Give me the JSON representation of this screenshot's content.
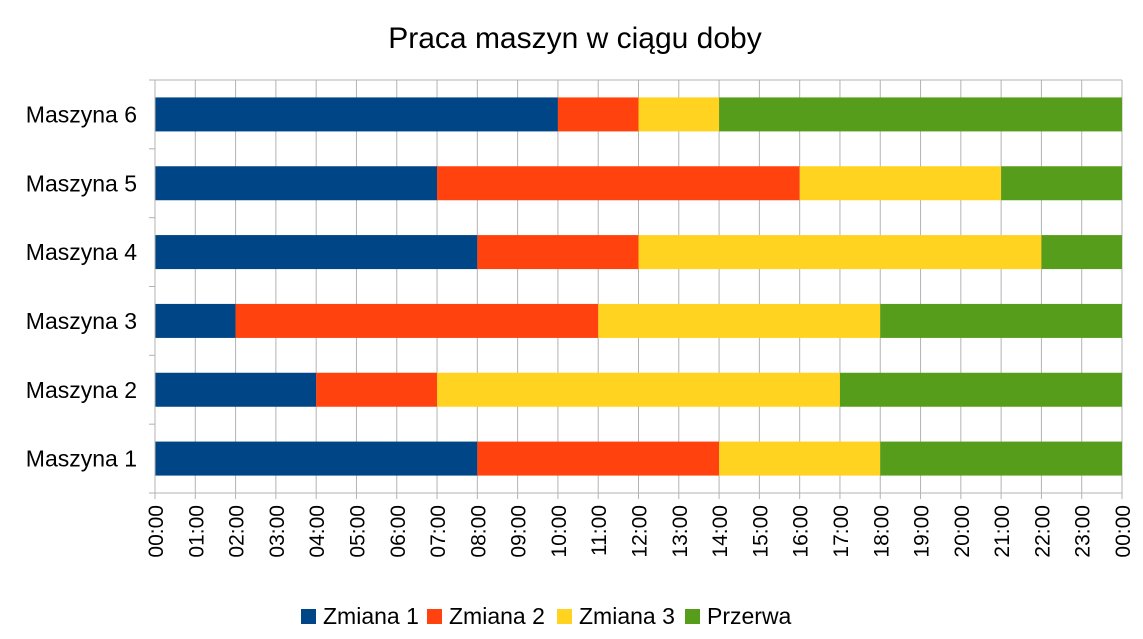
{
  "chart_data": {
    "type": "bar",
    "orientation": "horizontal",
    "stacked": true,
    "title": "Praca maszyn w ciągu doby",
    "categories": [
      "Maszyna 1",
      "Maszyna 2",
      "Maszyna 3",
      "Maszyna 4",
      "Maszyna 5",
      "Maszyna 6"
    ],
    "series": [
      {
        "name": "Zmiana 1",
        "color": "#004586",
        "values": [
          8,
          4,
          2,
          8,
          7,
          10
        ]
      },
      {
        "name": "Zmiana 2",
        "color": "#ff420e",
        "values": [
          6,
          3,
          9,
          4,
          9,
          2
        ]
      },
      {
        "name": "Zmiana 3",
        "color": "#ffd320",
        "values": [
          4,
          10,
          7,
          10,
          5,
          2
        ]
      },
      {
        "name": "Przerwa",
        "color": "#579d1c",
        "values": [
          6,
          7,
          6,
          2,
          3,
          10
        ]
      }
    ],
    "xlim": [
      0,
      24
    ],
    "x_unit": "hours",
    "x_tick_labels": [
      "00:00",
      "01:00",
      "02:00",
      "03:00",
      "04:00",
      "05:00",
      "06:00",
      "07:00",
      "08:00",
      "09:00",
      "10:00",
      "11:00",
      "12:00",
      "13:00",
      "14:00",
      "15:00",
      "16:00",
      "17:00",
      "18:00",
      "19:00",
      "20:00",
      "21:00",
      "22:00",
      "23:00",
      "00:00"
    ],
    "grid": true,
    "legend": "bottom"
  }
}
